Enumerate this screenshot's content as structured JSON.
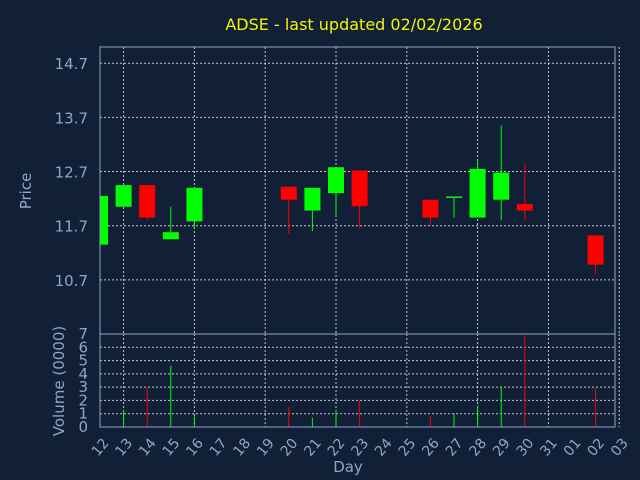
{
  "chart_data": {
    "type": "candlestick",
    "title": "ADSE - last updated 02/02/2026",
    "xlabel": "Day",
    "ylabel": "Price",
    "volume_label": "Volume (0000)",
    "x_ticks": [
      "12",
      "13",
      "14",
      "15",
      "16",
      "17",
      "18",
      "19",
      "20",
      "21",
      "22",
      "23",
      "24",
      "25",
      "26",
      "27",
      "28",
      "29",
      "30",
      "31",
      "01",
      "02",
      "03"
    ],
    "y_ticks": [
      14.7,
      13.7,
      12.7,
      11.7,
      10.7
    ],
    "ylim": [
      9.7,
      15.0
    ],
    "volume_ticks": [
      0,
      1,
      2,
      3,
      4,
      5,
      6,
      7
    ],
    "volume_ylim": [
      0,
      7
    ],
    "grid": true,
    "colors": {
      "up": "#00ff00",
      "down": "#ff0000",
      "background": "#112036",
      "plot_border": "#8ea6c8",
      "title": "#f5f500",
      "text": "#8ea6c8"
    },
    "candles": [
      {
        "day": "12",
        "open": 11.35,
        "close": 12.25,
        "high": 12.25,
        "low": 11.35,
        "volume": 0.0
      },
      {
        "day": "13",
        "open": 12.05,
        "close": 12.45,
        "high": 12.45,
        "low": 12.05,
        "volume": 1.3
      },
      {
        "day": "14",
        "open": 12.45,
        "close": 11.85,
        "high": 12.45,
        "low": 11.8,
        "volume": 3.0
      },
      {
        "day": "15",
        "open": 11.45,
        "close": 11.58,
        "high": 12.05,
        "low": 11.45,
        "volume": 4.6
      },
      {
        "day": "16",
        "open": 11.78,
        "close": 12.4,
        "high": 12.4,
        "low": 11.65,
        "volume": 0.8
      },
      {
        "day": "20",
        "open": 12.42,
        "close": 12.18,
        "high": 12.42,
        "low": 11.55,
        "volume": 1.5
      },
      {
        "day": "21",
        "open": 11.98,
        "close": 12.4,
        "high": 12.4,
        "low": 11.6,
        "volume": 0.7
      },
      {
        "day": "22",
        "open": 12.3,
        "close": 12.78,
        "high": 12.78,
        "low": 11.9,
        "volume": 1.3
      },
      {
        "day": "23",
        "open": 12.72,
        "close": 12.06,
        "high": 12.72,
        "low": 11.65,
        "volume": 2.0
      },
      {
        "day": "26",
        "open": 12.18,
        "close": 11.85,
        "high": 12.18,
        "low": 11.7,
        "volume": 0.8
      },
      {
        "day": "27",
        "open": 12.22,
        "close": 12.24,
        "high": 12.24,
        "low": 11.85,
        "volume": 1.0
      },
      {
        "day": "28",
        "open": 11.85,
        "close": 12.75,
        "high": 12.92,
        "low": 11.85,
        "volume": 1.6
      },
      {
        "day": "29",
        "open": 12.18,
        "close": 12.68,
        "high": 13.55,
        "low": 11.8,
        "volume": 3.0
      },
      {
        "day": "30",
        "open": 12.1,
        "close": 11.98,
        "high": 12.85,
        "low": 11.8,
        "volume": 6.9
      },
      {
        "day": "02",
        "open": 11.52,
        "close": 10.98,
        "high": 11.52,
        "low": 10.8,
        "volume": 2.9
      }
    ]
  }
}
